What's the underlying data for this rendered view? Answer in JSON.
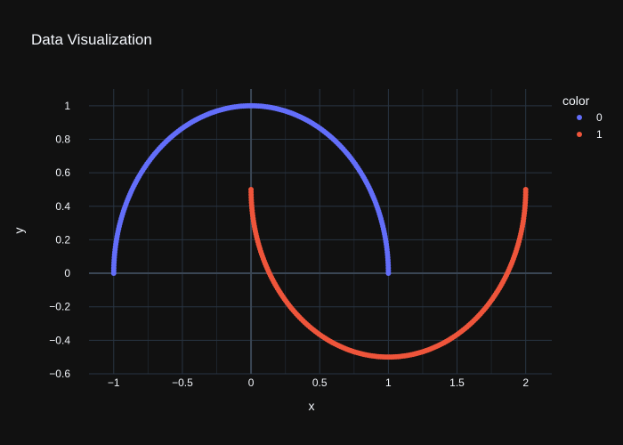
{
  "chart_data": {
    "type": "scatter",
    "title": "Data Visualization",
    "xlabel": "x",
    "ylabel": "y",
    "xlim": [
      -1.18,
      2.19
    ],
    "ylim": [
      -0.6,
      1.1
    ],
    "x_ticks": [
      -1,
      -0.5,
      0,
      0.5,
      1,
      1.5,
      2
    ],
    "x_tick_labels": [
      "−1",
      "−0.5",
      "0",
      "0.5",
      "1",
      "1.5",
      "2"
    ],
    "y_ticks": [
      -0.6,
      -0.4,
      -0.2,
      0,
      0.2,
      0.4,
      0.6,
      0.8,
      1
    ],
    "y_tick_labels": [
      "−0.6",
      "−0.4",
      "−0.2",
      "0",
      "0.2",
      "0.4",
      "0.6",
      "0.8",
      "1"
    ],
    "grid": true,
    "legend": {
      "title": "color",
      "placement": "top-right"
    },
    "series": [
      {
        "name": "0",
        "color": "#636efa",
        "shape": "upper semicircle: x = cos(t), y = sin(t), t from 0 to pi",
        "x_range": [
          -1,
          1
        ],
        "y_range": [
          0,
          1
        ],
        "points": 200
      },
      {
        "name": "1",
        "color": "#ef553b",
        "shape": "lower semicircle: x = 1 - cos(t), y = 0.5 - sin(t), t from 0 to pi",
        "x_range": [
          0,
          2
        ],
        "y_range": [
          -0.5,
          0.5
        ],
        "points": 200
      }
    ]
  }
}
